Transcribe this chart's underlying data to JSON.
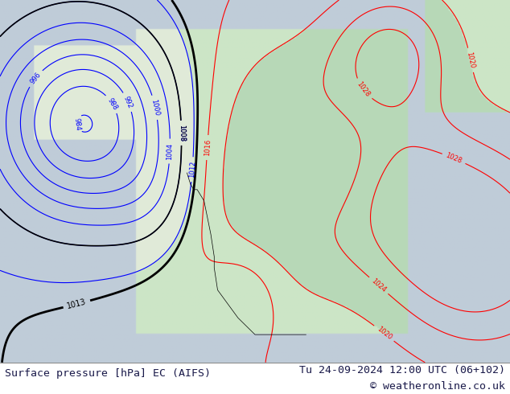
{
  "title_left": "Surface pressure [hPa] EC (AIFS)",
  "title_right": "Tu 24-09-2024 12:00 UTC (06+102)",
  "copyright": "© weatheronline.co.uk",
  "bg_color": "#e8e8e8",
  "map_bg": "#d0d8e0",
  "footer_bg": "#ffffff",
  "text_color_dark": "#1a1a4a",
  "left_label_color": "#1a1a4a",
  "right_label_color": "#1a1a4a",
  "copyright_color": "#1a1a4a"
}
